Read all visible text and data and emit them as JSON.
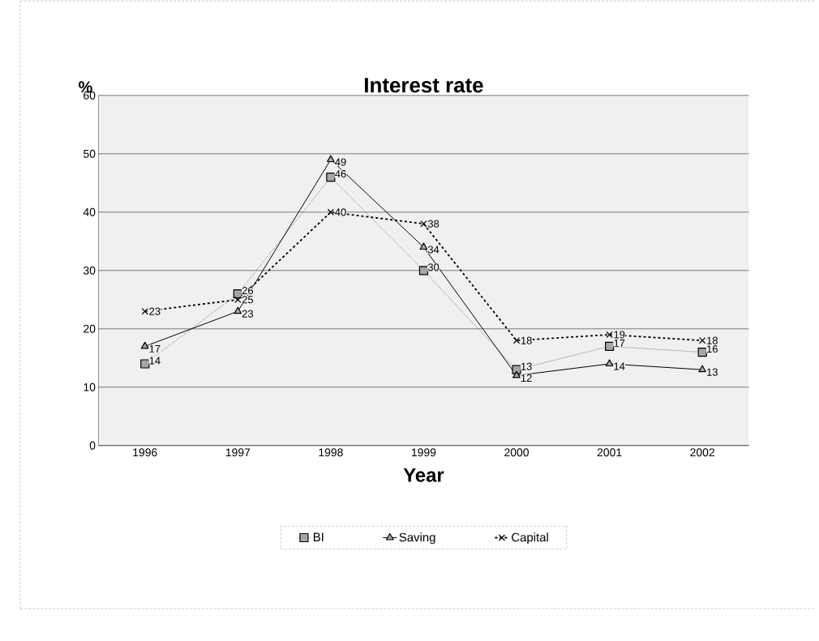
{
  "chart_data": {
    "type": "line",
    "title": "Interest rate",
    "xlabel": "Year",
    "ylabel": "%",
    "categories": [
      "1996",
      "1997",
      "1998",
      "1999",
      "2000",
      "2001",
      "2002"
    ],
    "series": [
      {
        "name": "BI",
        "color": "#000000",
        "marker": "square",
        "line_style": "dotted",
        "values": [
          14,
          26,
          46,
          30,
          13,
          17,
          16
        ]
      },
      {
        "name": "Saving",
        "color": "#000000",
        "marker": "triangle",
        "line_style": "solid",
        "values": [
          17,
          23,
          49,
          34,
          12,
          14,
          13
        ]
      },
      {
        "name": "Capital",
        "color": "#000000",
        "marker": "cross",
        "line_style": "dashed",
        "values": [
          23,
          25,
          40,
          38,
          18,
          19,
          18
        ]
      }
    ],
    "ylim": [
      0,
      60
    ],
    "yticks": [
      0,
      10,
      20,
      30,
      40,
      50,
      60
    ],
    "grid": "y",
    "legend": "bottom",
    "data_labels": true
  }
}
